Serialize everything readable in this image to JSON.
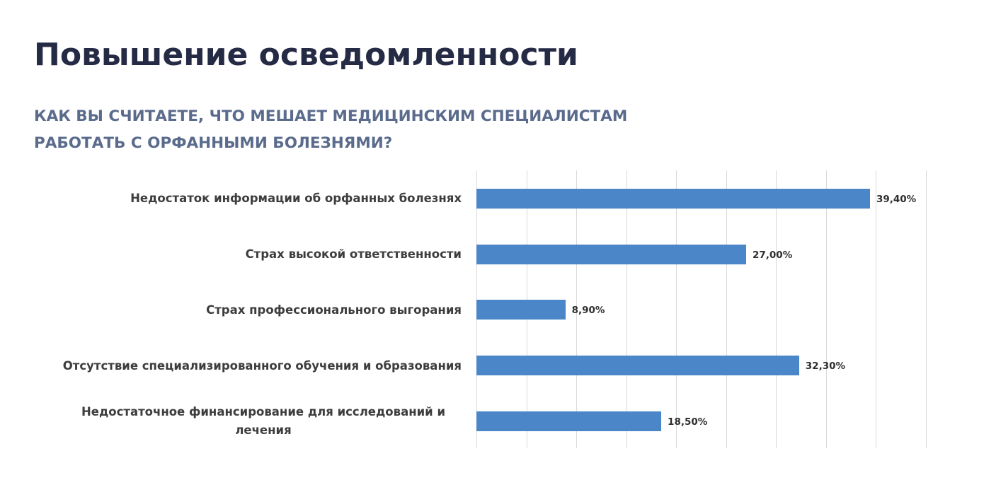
{
  "header": {
    "title": "Повышение осведомленности",
    "subtitle": "КАК ВЫ СЧИТАЕТЕ, ЧТО МЕШАЕТ МЕДИЦИНСКИМ СПЕЦИАЛИСТАМ РАБОТАТЬ С ОРФАННЫМИ БОЛЕЗНЯМИ?"
  },
  "colors": {
    "bar": "#4a86c8",
    "title": "#252a45",
    "subtitle": "#5a6b8c",
    "gridline": "#d9d9d9"
  },
  "chart_data": {
    "type": "bar",
    "orientation": "horizontal",
    "title": "КАК ВЫ СЧИТАЕТЕ, ЧТО МЕШАЕТ МЕДИЦИНСКИМ СПЕЦИАЛИСТАМ РАБОТАТЬ С ОРФАННЫМИ БОЛЕЗНЯМИ?",
    "categories": [
      "Недостаток информации об орфанных болезнях",
      "Страх высокой ответственности",
      "Страх профессионального выгорания",
      "Отсутствие специализированного обучения и образования",
      "Недостаточное финансирование для исследований и лечения"
    ],
    "values": [
      39.4,
      27.0,
      8.9,
      32.3,
      18.5
    ],
    "value_labels": [
      "39,40%",
      "27,00%",
      "8,90%",
      "32,30%",
      "18,50%"
    ],
    "xlabel": "",
    "ylabel": "",
    "xlim": [
      0,
      45
    ],
    "grid": true,
    "legend": null
  }
}
